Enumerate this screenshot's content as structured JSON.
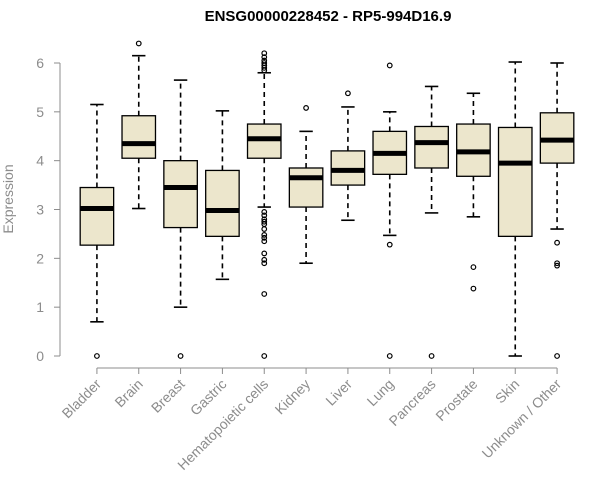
{
  "chart_data": {
    "type": "box",
    "title": "ENSG00000228452 - RP5-994D16.9",
    "xlabel": "",
    "ylabel": "Expression",
    "ylim": [
      0,
      6.4
    ],
    "yticks": [
      0,
      1,
      2,
      3,
      4,
      5,
      6
    ],
    "grid": false,
    "box_fill": "#ece6cc",
    "categories": [
      "Bladder",
      "Brain",
      "Breast",
      "Gastric",
      "Hematopoietic cells",
      "Kidney",
      "Liver",
      "Lung",
      "Pancreas",
      "Prostate",
      "Skin",
      "Unknown / Other"
    ],
    "boxes": [
      {
        "min": 0.7,
        "q1": 2.27,
        "median": 3.02,
        "q3": 3.45,
        "max": 5.15,
        "outliers": [
          0.0
        ]
      },
      {
        "min": 3.02,
        "q1": 4.05,
        "median": 4.35,
        "q3": 4.92,
        "max": 6.15,
        "outliers": [
          6.4
        ]
      },
      {
        "min": 1.0,
        "q1": 2.63,
        "median": 3.45,
        "q3": 4.0,
        "max": 5.65,
        "outliers": [
          0.0
        ]
      },
      {
        "min": 1.57,
        "q1": 2.45,
        "median": 2.98,
        "q3": 3.8,
        "max": 5.02,
        "outliers": []
      },
      {
        "min": 3.05,
        "q1": 4.05,
        "median": 4.45,
        "q3": 4.75,
        "max": 5.8,
        "outliers": [
          0.0,
          1.27,
          1.9,
          1.97,
          2.1,
          2.35,
          2.42,
          2.48,
          2.6,
          2.7,
          2.75,
          2.8,
          2.88,
          2.95,
          5.85,
          5.9,
          5.95,
          6.0,
          6.05,
          6.12,
          6.2
        ]
      },
      {
        "min": 1.9,
        "q1": 3.05,
        "median": 3.65,
        "q3": 3.85,
        "max": 4.6,
        "outliers": [
          5.08
        ]
      },
      {
        "min": 2.78,
        "q1": 3.5,
        "median": 3.8,
        "q3": 4.2,
        "max": 5.1,
        "outliers": [
          5.38
        ]
      },
      {
        "min": 2.47,
        "q1": 3.72,
        "median": 4.15,
        "q3": 4.6,
        "max": 5.0,
        "outliers": [
          0.0,
          2.28,
          5.95
        ]
      },
      {
        "min": 2.93,
        "q1": 3.85,
        "median": 4.37,
        "q3": 4.7,
        "max": 5.52,
        "outliers": [
          0.0
        ]
      },
      {
        "min": 2.85,
        "q1": 3.68,
        "median": 4.18,
        "q3": 4.75,
        "max": 5.38,
        "outliers": [
          1.38,
          1.82
        ]
      },
      {
        "min": 0.0,
        "q1": 2.45,
        "median": 3.95,
        "q3": 4.68,
        "max": 6.02,
        "outliers": []
      },
      {
        "min": 2.6,
        "q1": 3.95,
        "median": 4.42,
        "q3": 4.98,
        "max": 6.0,
        "outliers": [
          0.0,
          1.85,
          1.9,
          2.32
        ]
      }
    ]
  }
}
